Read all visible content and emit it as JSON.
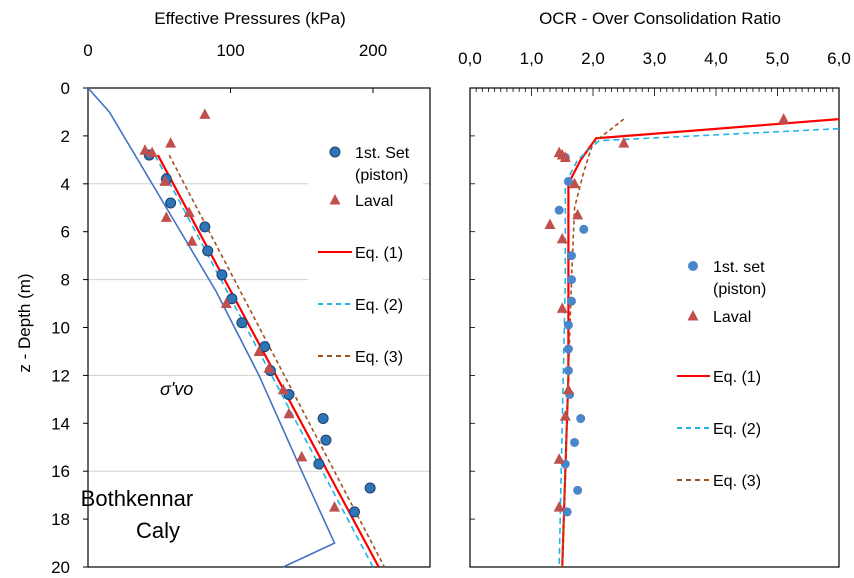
{
  "chart_data": [
    {
      "type": "line",
      "title": "Effective Pressures (kPa)",
      "xlabel": "",
      "ylabel": "z - Depth (m)",
      "xlim": [
        0,
        240
      ],
      "ylim": [
        20,
        0
      ],
      "x_ticks": [
        "0",
        "100",
        "200"
      ],
      "y_ticks": [
        "0",
        "2",
        "4",
        "6",
        "8",
        "10",
        "12",
        "14",
        "16",
        "18",
        "20"
      ],
      "grid": "horizontal",
      "legend": "right",
      "annotation_text": "Bothkennar Caly",
      "annotation_label": "σ'vo",
      "series": [
        {
          "name": "1st. Set (piston)",
          "kind": "scatter",
          "marker": "circle",
          "color": "#2e75b6",
          "points": [
            [
              43,
              2.8
            ],
            [
              55,
              3.8
            ],
            [
              58,
              4.8
            ],
            [
              82,
              5.8
            ],
            [
              84,
              6.8
            ],
            [
              94,
              7.8
            ],
            [
              101,
              8.8
            ],
            [
              108,
              9.8
            ],
            [
              124,
              10.8
            ],
            [
              128,
              11.8
            ],
            [
              141,
              12.8
            ],
            [
              165,
              13.8
            ],
            [
              167,
              14.7
            ],
            [
              162,
              15.7
            ],
            [
              198,
              16.7
            ],
            [
              187,
              17.7
            ]
          ]
        },
        {
          "name": "Laval",
          "kind": "scatter",
          "marker": "triangle",
          "color": "#c0504d",
          "points": [
            [
              82,
              1.1
            ],
            [
              58,
              2.3
            ],
            [
              40,
              2.6
            ],
            [
              45,
              2.7
            ],
            [
              54,
              3.9
            ],
            [
              55,
              5.4
            ],
            [
              71,
              5.2
            ],
            [
              73,
              6.4
            ],
            [
              97,
              9.0
            ],
            [
              120,
              11.0
            ],
            [
              127,
              11.7
            ],
            [
              137,
              12.6
            ],
            [
              141,
              13.6
            ],
            [
              150,
              15.4
            ],
            [
              173,
              17.5
            ]
          ]
        },
        {
          "name": "Eq. (1)",
          "kind": "line",
          "color": "#ff0000",
          "style": "solid",
          "points": [
            [
              49,
              2.8
            ],
            [
              204,
              20
            ]
          ]
        },
        {
          "name": "Eq. (2)",
          "kind": "line",
          "color": "#1fb5e8",
          "style": "dashed",
          "points": [
            [
              47,
              2.8
            ],
            [
              200,
              20
            ]
          ]
        },
        {
          "name": "Eq. (3)",
          "kind": "line",
          "color": "#a0521d",
          "style": "dashed",
          "points": [
            [
              57,
              2.8
            ],
            [
              208,
              20
            ]
          ]
        },
        {
          "name": "σ'vo",
          "kind": "line",
          "color": "#4472c4",
          "style": "solid",
          "points": [
            [
              0,
              0
            ],
            [
              15,
              1
            ],
            [
              55,
              5
            ],
            [
              90,
              8.5
            ],
            [
              120,
              12
            ],
            [
              150,
              16
            ],
            [
              173,
              19
            ],
            [
              137,
              20
            ]
          ]
        }
      ]
    },
    {
      "type": "line",
      "title": "OCR - Over Consolidation Ratio",
      "xlabel": "",
      "ylabel": "",
      "xlim": [
        0,
        6
      ],
      "ylim": [
        20,
        0
      ],
      "x_ticks": [
        "0,0",
        "1,0",
        "2,0",
        "3,0",
        "4,0",
        "5,0",
        "6,0"
      ],
      "grid": "none",
      "legend": "right",
      "series": [
        {
          "name": "1st. set (piston)",
          "kind": "scatter",
          "marker": "circle",
          "color": "#4a86c8",
          "points": [
            [
              1.55,
              2.9
            ],
            [
              1.6,
              3.9
            ],
            [
              1.45,
              5.1
            ],
            [
              1.85,
              5.9
            ],
            [
              1.65,
              7.0
            ],
            [
              1.65,
              8.0
            ],
            [
              1.65,
              8.9
            ],
            [
              1.6,
              9.9
            ],
            [
              1.6,
              10.9
            ],
            [
              1.6,
              11.8
            ],
            [
              1.62,
              12.8
            ],
            [
              1.8,
              13.8
            ],
            [
              1.7,
              14.8
            ],
            [
              1.55,
              15.7
            ],
            [
              1.75,
              16.8
            ],
            [
              1.58,
              17.7
            ]
          ]
        },
        {
          "name": "Laval",
          "kind": "scatter",
          "marker": "triangle",
          "color": "#c0504d",
          "points": [
            [
              5.1,
              1.3
            ],
            [
              2.5,
              2.3
            ],
            [
              1.45,
              2.7
            ],
            [
              1.5,
              2.8
            ],
            [
              1.55,
              2.9
            ],
            [
              1.7,
              4.0
            ],
            [
              1.75,
              5.3
            ],
            [
              1.3,
              5.7
            ],
            [
              1.5,
              6.3
            ],
            [
              1.5,
              9.2
            ],
            [
              1.6,
              12.6
            ],
            [
              1.55,
              13.7
            ],
            [
              1.45,
              15.5
            ],
            [
              1.45,
              17.5
            ]
          ]
        },
        {
          "name": "Eq. (1)",
          "kind": "line",
          "color": "#ff0000",
          "style": "solid",
          "points": [
            [
              6.0,
              1.3
            ],
            [
              2.05,
              2.1
            ],
            [
              1.8,
              3.0
            ],
            [
              1.6,
              4.0
            ],
            [
              1.6,
              6.0
            ],
            [
              1.6,
              12.0
            ],
            [
              1.55,
              16.0
            ],
            [
              1.5,
              20.0
            ]
          ]
        },
        {
          "name": "Eq. (2)",
          "kind": "line",
          "color": "#1fb5e8",
          "style": "dashed",
          "points": [
            [
              6.0,
              1.7
            ],
            [
              2.1,
              2.2
            ],
            [
              1.75,
              3.0
            ],
            [
              1.55,
              4.0
            ],
            [
              1.55,
              8.0
            ],
            [
              1.5,
              14.0
            ],
            [
              1.45,
              20.0
            ]
          ]
        },
        {
          "name": "Eq. (3)",
          "kind": "line",
          "color": "#a0521d",
          "style": "dashed",
          "points": [
            [
              2.5,
              1.3
            ],
            [
              2.0,
              2.3
            ],
            [
              1.85,
              3.5
            ],
            [
              1.7,
              5.0
            ],
            [
              1.65,
              8.0
            ],
            [
              1.6,
              12.0
            ],
            [
              1.55,
              16.0
            ],
            [
              1.5,
              20.0
            ]
          ]
        }
      ]
    }
  ]
}
